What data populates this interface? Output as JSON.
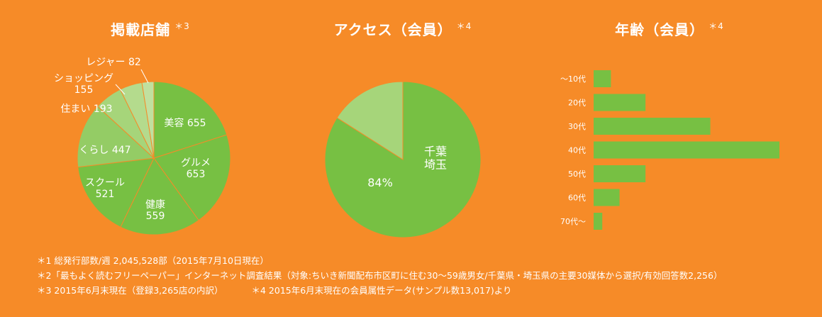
{
  "colors": {
    "background": "#F68B28",
    "pie_slices": [
      "#77C043",
      "#77C043",
      "#77C043",
      "#77C043",
      "#94CC65",
      "#A6D57A",
      "#B4DB8D",
      "#C0E09F"
    ],
    "access_main": "#77C043",
    "access_rest": "#A6D57A",
    "bar": "#77C043"
  },
  "chart_data": [
    {
      "type": "pie",
      "title": "掲載店舗",
      "title_note": "＊3",
      "labels": [
        "美容",
        "グルメ",
        "健康",
        "スクール",
        "くらし",
        "住まい",
        "ショッピング",
        "レジャー"
      ],
      "values": [
        655,
        653,
        559,
        521,
        447,
        193,
        155,
        82
      ]
    },
    {
      "type": "pie",
      "title": "アクセス（会員）",
      "title_note": "＊4",
      "labels": [
        "千葉\n埼玉",
        ""
      ],
      "values": [
        84,
        16
      ],
      "data_label": "84%"
    },
    {
      "type": "bar",
      "orientation": "horizontal",
      "title": "年齢（会員）",
      "title_note": "＊4",
      "categories": [
        "～10代",
        "20代",
        "30代",
        "40代",
        "50代",
        "60代",
        "70代～"
      ],
      "values": [
        4,
        12,
        27,
        43,
        12,
        6,
        2
      ],
      "xlim": [
        0,
        43
      ]
    }
  ],
  "footnotes": {
    "n1": "＊1  総発行部数/週 2,045,528部（2015年7月10日現在）",
    "n2": "＊2「最もよく読むフリーペーパー」インターネット調査結果（対象:ちいき新聞配布市区町に住む30～59歳男女/千葉県・埼玉県の主要30媒体から選択/有効回答数2,256）",
    "n3": "＊3  2015年6月末現在（登録3,265店の内訳）",
    "n4": "＊4  2015年6月末現在の会員属性データ(サンプル数13,017)より"
  }
}
